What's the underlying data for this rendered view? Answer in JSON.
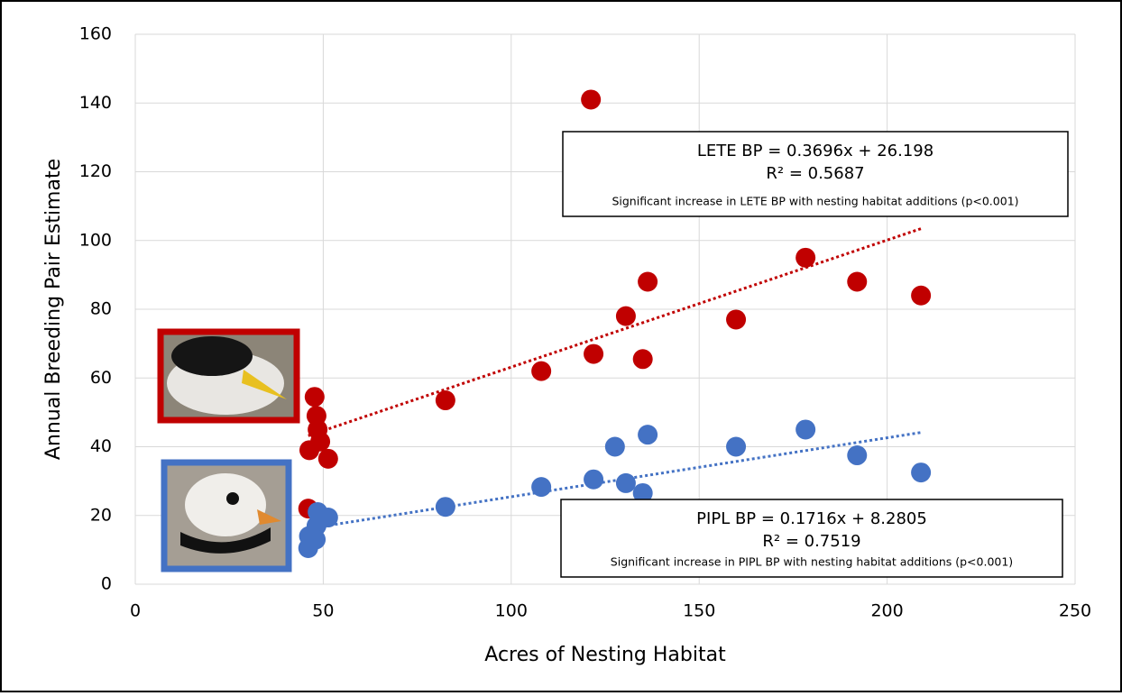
{
  "chart_data": {
    "type": "scatter",
    "xlabel": "Acres of Nesting Habitat",
    "ylabel": "Annual Breeding Pair Estimate",
    "xlim": [
      0,
      250
    ],
    "xticks": [
      0,
      50,
      100,
      150,
      200,
      250
    ],
    "ylim": [
      0,
      160
    ],
    "yticks": [
      0,
      20,
      40,
      60,
      80,
      100,
      120,
      140,
      160
    ],
    "grid": true,
    "series": [
      {
        "color": "#c00000",
        "x": [
          121.2,
          178.3,
          192,
          209,
          136.3,
          130.5,
          159.8,
          121.9,
          108,
          135,
          82.5,
          47.7,
          48.2,
          48.5,
          49.2,
          46.3,
          51.3,
          46
        ],
        "values": [
          141,
          95,
          88,
          84,
          88,
          78,
          77,
          67,
          62,
          65.5,
          53.5,
          54.5,
          49,
          45,
          41.5,
          39,
          36.5,
          22
        ],
        "trend": {
          "slope": 0.3696,
          "intercept": 26.198
        }
      },
      {
        "color": "#4472c4",
        "x": [
          178.3,
          136.3,
          127.6,
          159.8,
          192,
          209,
          121.9,
          108,
          130.5,
          135,
          82.5,
          48.5,
          51.3,
          48.2,
          46.2,
          48,
          46
        ],
        "values": [
          45,
          43.5,
          40,
          40,
          37.5,
          32.5,
          30.5,
          28.3,
          29.4,
          26.5,
          22.5,
          21,
          19.4,
          17,
          14,
          13,
          10.5
        ],
        "trend": {
          "slope": 0.1716,
          "intercept": 8.2805
        }
      }
    ],
    "annotations": [
      {
        "lines": [
          "LETE BP = 0.3696x + 26.198",
          "R² = 0.5687",
          "Significant increase in LETE BP with nesting habitat additions (p<0.001)"
        ]
      },
      {
        "lines": [
          "PIPL BP = 0.1716x + 8.2805",
          "R² = 0.7519",
          "Significant increase in PIPL BP with nesting habitat additions (p<0.001)"
        ]
      }
    ]
  }
}
